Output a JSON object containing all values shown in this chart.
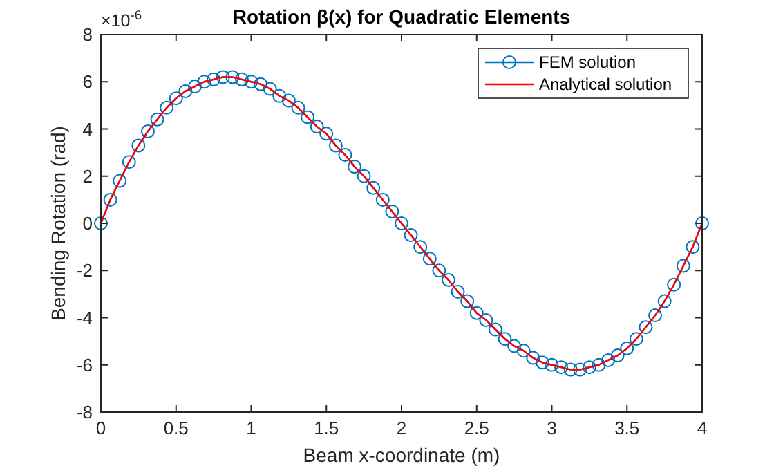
{
  "chart_data": {
    "type": "line",
    "title": "Rotation β(x) for Quadratic Elements",
    "xlabel": "Beam x-coordinate (m)",
    "ylabel": "Bending Rotation (rad)",
    "annotations": [
      "×10$^{-6}$"
    ],
    "x": [
      0,
      0.0625,
      0.125,
      0.1875,
      0.25,
      0.3125,
      0.375,
      0.4375,
      0.5,
      0.5625,
      0.625,
      0.6875,
      0.75,
      0.8125,
      0.875,
      0.9375,
      1,
      1.0625,
      1.125,
      1.1875,
      1.25,
      1.3125,
      1.375,
      1.4375,
      1.5,
      1.5625,
      1.625,
      1.6875,
      1.75,
      1.8125,
      1.875,
      1.9375,
      2,
      2.0625,
      2.125,
      2.1875,
      2.25,
      2.3125,
      2.375,
      2.4375,
      2.5,
      2.5625,
      2.625,
      2.6875,
      2.75,
      2.8125,
      2.875,
      2.9375,
      3,
      3.0625,
      3.125,
      3.1875,
      3.25,
      3.3125,
      3.375,
      3.4375,
      3.5,
      3.5625,
      3.625,
      3.6875,
      3.75,
      3.8125,
      3.875,
      3.9375,
      4
    ],
    "series": [
      {
        "name": "FEM solution",
        "color": "#0072bd",
        "marker": "circle",
        "values": [
          0,
          1,
          1.8,
          2.6,
          3.3,
          3.9,
          4.4,
          4.9,
          5.3,
          5.6,
          5.8,
          6,
          6.1,
          6.2,
          6.2,
          6.1,
          6,
          5.9,
          5.7,
          5.4,
          5.2,
          4.9,
          4.5,
          4.1,
          3.8,
          3.3,
          2.9,
          2.4,
          2,
          1.5,
          1,
          0.5,
          0,
          -0.5,
          -1,
          -1.5,
          -2,
          -2.4,
          -2.9,
          -3.3,
          -3.8,
          -4.1,
          -4.5,
          -4.9,
          -5.2,
          -5.4,
          -5.7,
          -5.9,
          -6,
          -6.1,
          -6.2,
          -6.2,
          -6.1,
          -6,
          -5.8,
          -5.6,
          -5.3,
          -4.9,
          -4.4,
          -3.9,
          -3.3,
          -2.6,
          -1.8,
          -1,
          0
        ]
      },
      {
        "name": "Analytical solution",
        "color": "#ff0000",
        "marker": "none",
        "values": [
          0,
          1,
          1.8,
          2.6,
          3.3,
          3.9,
          4.4,
          4.9,
          5.3,
          5.6,
          5.8,
          6,
          6.1,
          6.2,
          6.2,
          6.1,
          6,
          5.9,
          5.7,
          5.4,
          5.2,
          4.9,
          4.5,
          4.1,
          3.8,
          3.3,
          2.9,
          2.4,
          2,
          1.5,
          1,
          0.5,
          0,
          -0.5,
          -1,
          -1.5,
          -2,
          -2.4,
          -2.9,
          -3.3,
          -3.8,
          -4.1,
          -4.5,
          -4.9,
          -5.2,
          -5.4,
          -5.7,
          -5.9,
          -6,
          -6.1,
          -6.2,
          -6.2,
          -6.1,
          -6,
          -5.8,
          -5.6,
          -5.3,
          -4.9,
          -4.4,
          -3.9,
          -3.3,
          -2.6,
          -1.8,
          -1,
          0
        ]
      }
    ],
    "xlim": [
      0,
      4
    ],
    "xticks": [
      0,
      0.5,
      1,
      1.5,
      2,
      2.5,
      3,
      3.5,
      4
    ],
    "ylim": [
      -8,
      8
    ],
    "yticks": [
      -8,
      -6,
      -4,
      -2,
      0,
      2,
      4,
      6,
      8
    ],
    "legend": "top right",
    "grid": false
  }
}
